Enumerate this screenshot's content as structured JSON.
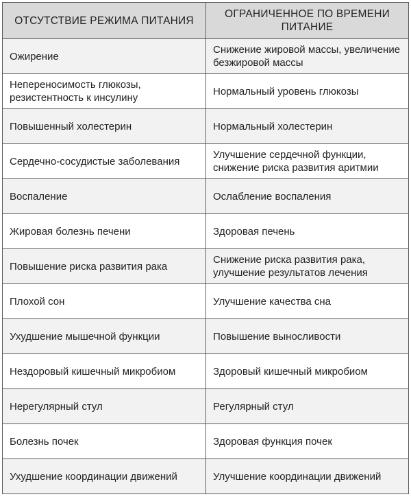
{
  "table": {
    "headers": [
      "ОТСУТСТВИЕ РЕЖИМА ПИТАНИЯ",
      "ОГРАНИЧЕННОЕ ПО ВРЕМЕНИ ПИТАНИЕ"
    ],
    "rows": [
      [
        "Ожирение",
        "Снижение жировой массы, увеличение безжировой массы"
      ],
      [
        "Непереносимость глюкозы, резистентность к инсулину",
        "Нормальный уровень глюкозы"
      ],
      [
        "Повышенный холестерин",
        "Нормальный холестерин"
      ],
      [
        "Сердечно-сосудистые заболевания",
        "Улучшение сердечной функции, снижение риска развития аритмии"
      ],
      [
        "Воспаление",
        "Ослабление воспаления"
      ],
      [
        "Жировая болезнь печени",
        "Здоровая печень"
      ],
      [
        "Повышение риска развития рака",
        "Снижение риска развития рака, улучшение результатов лечения"
      ],
      [
        "Плохой сон",
        "Улучшение качества сна"
      ],
      [
        "Ухудшение мышечной функции",
        "Повышение выносливости"
      ],
      [
        "Нездоровый кишечный микробиом",
        "Здоровый кишечный микробиом"
      ],
      [
        "Нерегулярный стул",
        "Регулярный стул"
      ],
      [
        "Болезнь почек",
        "Здоровая функция почек"
      ],
      [
        "Ухудшение координации движений",
        "Улучшение координации движений"
      ]
    ]
  }
}
